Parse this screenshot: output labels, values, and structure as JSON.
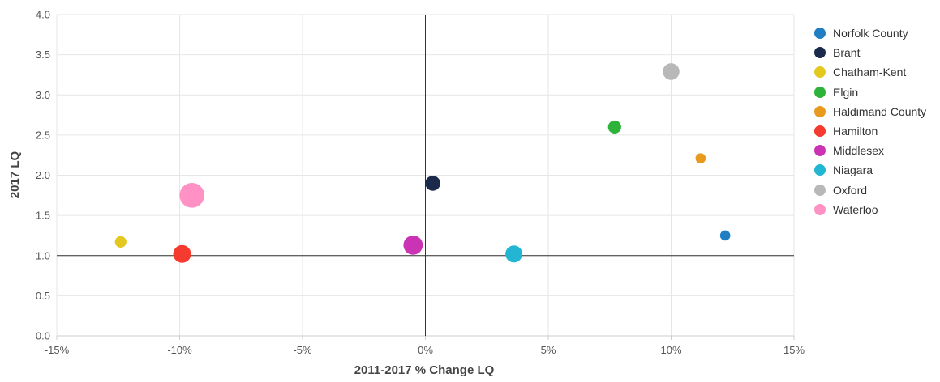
{
  "chart_data": {
    "type": "scatter",
    "title": "",
    "xlabel": "2011-2017 % Change LQ",
    "ylabel": "2017 LQ",
    "xlim": [
      -15,
      15
    ],
    "ylim": [
      0,
      4
    ],
    "x_ticks": [
      "-15%",
      "-10%",
      "-5%",
      "0%",
      "5%",
      "10%",
      "15%"
    ],
    "y_ticks": [
      "0.0",
      "0.5",
      "1.0",
      "1.5",
      "2.0",
      "2.5",
      "3.0",
      "3.5",
      "4.0"
    ],
    "reference_lines": {
      "x": 0,
      "y": 1.0
    },
    "grid": true,
    "legend_position": "right",
    "series": [
      {
        "name": "Norfolk County",
        "color": "#1f7fc2",
        "x": 12.2,
        "y": 1.25,
        "size": 1
      },
      {
        "name": "Brant",
        "color": "#1b2a4a",
        "x": 0.3,
        "y": 1.9,
        "size": 2.2
      },
      {
        "name": "Chatham-Kent",
        "color": "#e4c81f",
        "x": -12.4,
        "y": 1.17,
        "size": 1.3
      },
      {
        "name": "Elgin",
        "color": "#2db33a",
        "x": 7.7,
        "y": 2.6,
        "size": 1.7
      },
      {
        "name": "Haldimand County",
        "color": "#e89a1e",
        "x": 11.2,
        "y": 2.21,
        "size": 1
      },
      {
        "name": "Hamilton",
        "color": "#f53b30",
        "x": -9.9,
        "y": 1.02,
        "size": 3.1
      },
      {
        "name": "Middlesex",
        "color": "#c933b4",
        "x": -0.5,
        "y": 1.13,
        "size": 3.6
      },
      {
        "name": "Niagara",
        "color": "#22b6d2",
        "x": 3.6,
        "y": 1.02,
        "size": 2.8
      },
      {
        "name": "Oxford",
        "color": "#b8b8b8",
        "x": 10.0,
        "y": 3.29,
        "size": 2.7
      },
      {
        "name": "Waterloo",
        "color": "#ff91c4",
        "x": -9.5,
        "y": 1.75,
        "size": 6
      }
    ]
  }
}
